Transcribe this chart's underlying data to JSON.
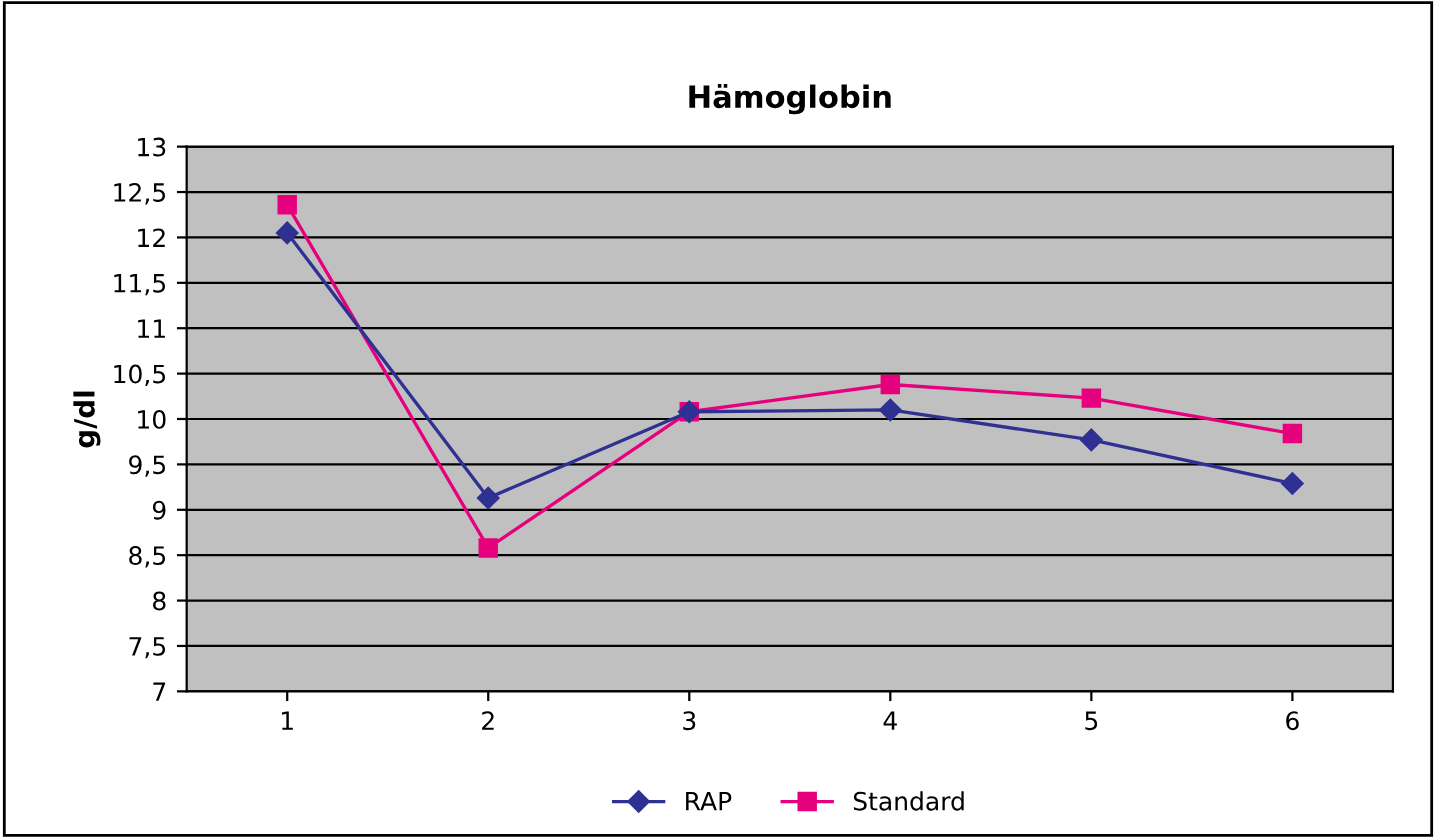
{
  "chart_data": {
    "type": "line",
    "title": "Hämoglobin",
    "ylabel": "g/dl",
    "categories": [
      "1",
      "2",
      "3",
      "4",
      "5",
      "6"
    ],
    "series": [
      {
        "name": "RAP",
        "color": "#2e3192",
        "marker": "diamond",
        "values": [
          12.05,
          9.13,
          10.08,
          10.1,
          9.77,
          9.29
        ]
      },
      {
        "name": "Standard",
        "color": "#e6007e",
        "marker": "square",
        "values": [
          12.36,
          8.58,
          10.08,
          10.38,
          10.23,
          9.84
        ]
      }
    ],
    "ylim": [
      7,
      13
    ],
    "yticks": [
      7,
      {
        "value": 7.5,
        "label": "7,5"
      },
      8,
      {
        "value": 8.5,
        "label": "8,5"
      },
      9,
      {
        "value": 9.5,
        "label": "9,5"
      },
      10,
      {
        "value": 10.5,
        "label": "10,5"
      },
      11,
      {
        "value": 11.5,
        "label": "11,5"
      },
      12,
      {
        "value": 12.5,
        "label": "12,5"
      },
      13
    ],
    "grid": "y",
    "legend": "bottom",
    "line_style": "solid"
  }
}
